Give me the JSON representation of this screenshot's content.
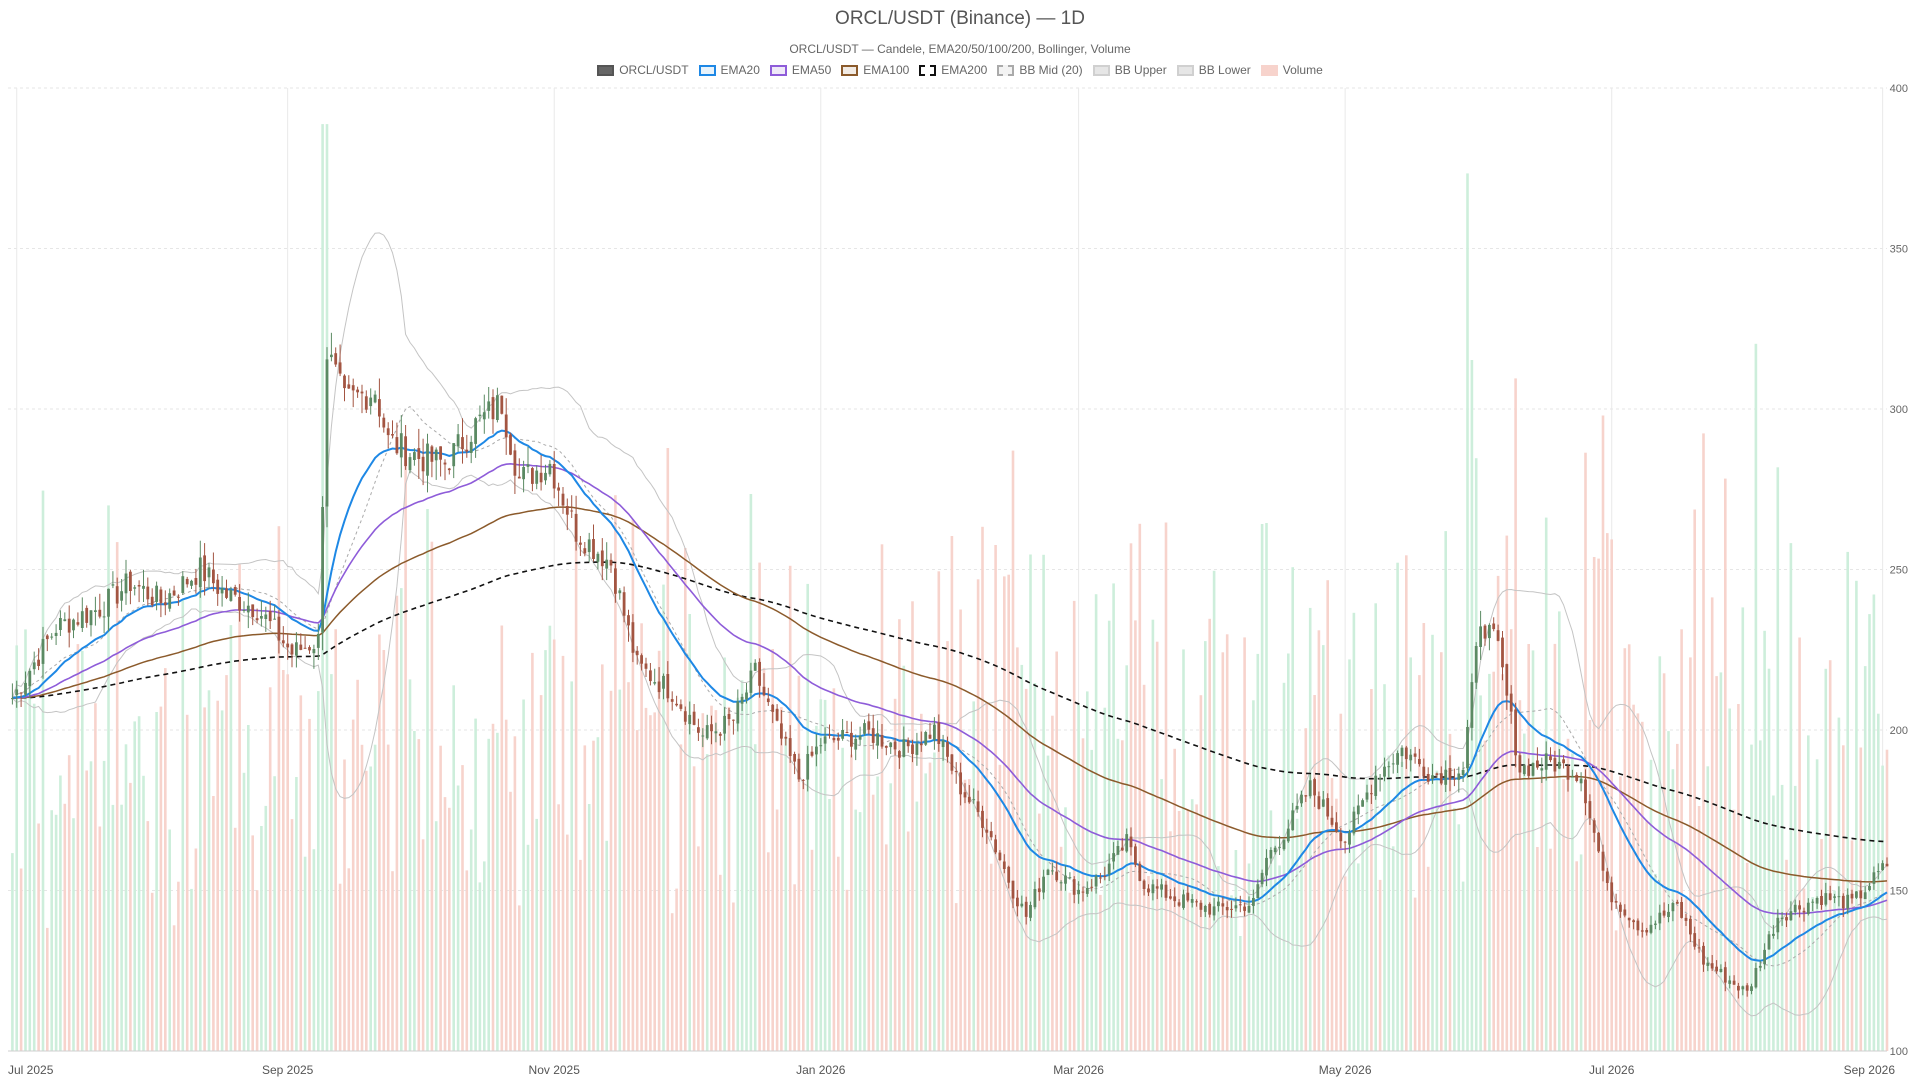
{
  "chart_data": {
    "type": "candlestick",
    "title": "ORCL/USDT (Binance) — 1D",
    "subtitle": "ORCL/USDT — Candele, EMA20/50/100/200, Bollinger, Volume",
    "legend": [
      {
        "name": "ORCL/USDT",
        "style": "solid",
        "fill": "#666666",
        "stroke": "#555555"
      },
      {
        "name": "EMA20",
        "style": "solid",
        "fill": "#e8f3fb",
        "stroke": "#1e88e5"
      },
      {
        "name": "EMA50",
        "style": "solid",
        "fill": "#efe9f8",
        "stroke": "#8e5cd9"
      },
      {
        "name": "EMA100",
        "style": "solid",
        "fill": "#f2ebe4",
        "stroke": "#8b5a2b"
      },
      {
        "name": "EMA200",
        "style": "dashed",
        "fill": "#ffffff",
        "stroke": "#111111"
      },
      {
        "name": "BB Mid (20)",
        "style": "dashed",
        "fill": "#f3f3f3",
        "stroke": "#aaaaaa"
      },
      {
        "name": "BB Upper",
        "style": "solid",
        "fill": "#e6e6e6",
        "stroke": "#d0d0d0"
      },
      {
        "name": "BB Lower",
        "style": "solid",
        "fill": "#e6e6e6",
        "stroke": "#d0d0d0"
      },
      {
        "name": "Volume",
        "style": "solid",
        "fill": "#f7d3cc",
        "stroke": "#f7d3cc"
      }
    ],
    "x_ticks": [
      {
        "label": "Jul 2025",
        "date": "2025-07-01"
      },
      {
        "label": "Sep 2025",
        "date": "2025-09-01"
      },
      {
        "label": "Nov 2025",
        "date": "2025-11-01"
      },
      {
        "label": "Jan 2026",
        "date": "2026-01-01"
      },
      {
        "label": "Mar 2026",
        "date": "2026-03-01"
      },
      {
        "label": "May 2026",
        "date": "2026-05-01"
      },
      {
        "label": "Jul 2026",
        "date": "2026-07-01"
      },
      {
        "label": "Sep 2026",
        "date": "2026-09-01"
      }
    ],
    "xlim": [
      "2025-06-29",
      "2026-09-02"
    ],
    "y_ticks": [
      100,
      150,
      200,
      250,
      300,
      350,
      400
    ],
    "ylim": [
      100,
      400
    ],
    "grid": true,
    "colors": {
      "up": "#5b8a63",
      "down": "#a35542",
      "vol_up": "#cdeedb",
      "vol_down": "#f7d3cc",
      "ema20": "#1e88e5",
      "ema50": "#8e5cd9",
      "ema100": "#8b5a2b",
      "ema200": "#111111",
      "bb_mid": "#aaaaaa",
      "bb_band": "#c4c4c4"
    },
    "price_keypoints": [
      [
        "2025-06-30",
        210
      ],
      [
        "2025-07-10",
        232
      ],
      [
        "2025-07-20",
        238
      ],
      [
        "2025-07-27",
        246
      ],
      [
        "2025-08-03",
        240
      ],
      [
        "2025-08-12",
        250
      ],
      [
        "2025-08-18",
        242
      ],
      [
        "2025-08-25",
        238
      ],
      [
        "2025-09-02",
        224
      ],
      [
        "2025-09-08",
        228
      ],
      [
        "2025-09-10",
        318
      ],
      [
        "2025-09-14",
        302
      ],
      [
        "2025-09-21",
        306
      ],
      [
        "2025-09-24",
        290
      ],
      [
        "2025-10-01",
        285
      ],
      [
        "2025-10-07",
        283
      ],
      [
        "2025-10-14",
        295
      ],
      [
        "2025-10-20",
        302
      ],
      [
        "2025-10-24",
        278
      ],
      [
        "2025-10-31",
        283
      ],
      [
        "2025-11-06",
        262
      ],
      [
        "2025-11-14",
        252
      ],
      [
        "2025-11-20",
        220
      ],
      [
        "2025-11-28",
        212
      ],
      [
        "2025-12-05",
        198
      ],
      [
        "2025-12-12",
        203
      ],
      [
        "2025-12-17",
        218
      ],
      [
        "2025-12-22",
        200
      ],
      [
        "2025-12-27",
        185
      ],
      [
        "2026-01-01",
        196
      ],
      [
        "2026-01-12",
        199
      ],
      [
        "2026-01-20",
        194
      ],
      [
        "2026-01-27",
        200
      ],
      [
        "2026-02-02",
        182
      ],
      [
        "2026-02-08",
        170
      ],
      [
        "2026-02-14",
        150
      ],
      [
        "2026-02-17",
        142
      ],
      [
        "2026-02-22",
        158
      ],
      [
        "2026-03-01",
        150
      ],
      [
        "2026-03-06",
        154
      ],
      [
        "2026-03-12",
        165
      ],
      [
        "2026-03-16",
        152
      ],
      [
        "2026-03-24",
        147
      ],
      [
        "2026-04-01",
        144
      ],
      [
        "2026-04-10",
        146
      ],
      [
        "2026-04-13",
        160
      ],
      [
        "2026-04-18",
        170
      ],
      [
        "2026-04-23",
        182
      ],
      [
        "2026-05-01",
        166
      ],
      [
        "2026-05-08",
        186
      ],
      [
        "2026-05-14",
        194
      ],
      [
        "2026-05-21",
        186
      ],
      [
        "2026-05-28",
        188
      ],
      [
        "2026-06-01",
        235
      ],
      [
        "2026-06-05",
        225
      ],
      [
        "2026-06-10",
        188
      ],
      [
        "2026-06-17",
        190
      ],
      [
        "2026-06-24",
        186
      ],
      [
        "2026-06-30",
        150
      ],
      [
        "2026-07-08",
        138
      ],
      [
        "2026-07-16",
        145
      ],
      [
        "2026-07-22",
        128
      ],
      [
        "2026-08-01",
        118
      ],
      [
        "2026-08-08",
        142
      ],
      [
        "2026-08-18",
        148
      ],
      [
        "2026-08-25",
        146
      ],
      [
        "2026-09-02",
        158
      ]
    ],
    "volume_ylim": [
      0,
      400
    ],
    "seed": 7
  }
}
